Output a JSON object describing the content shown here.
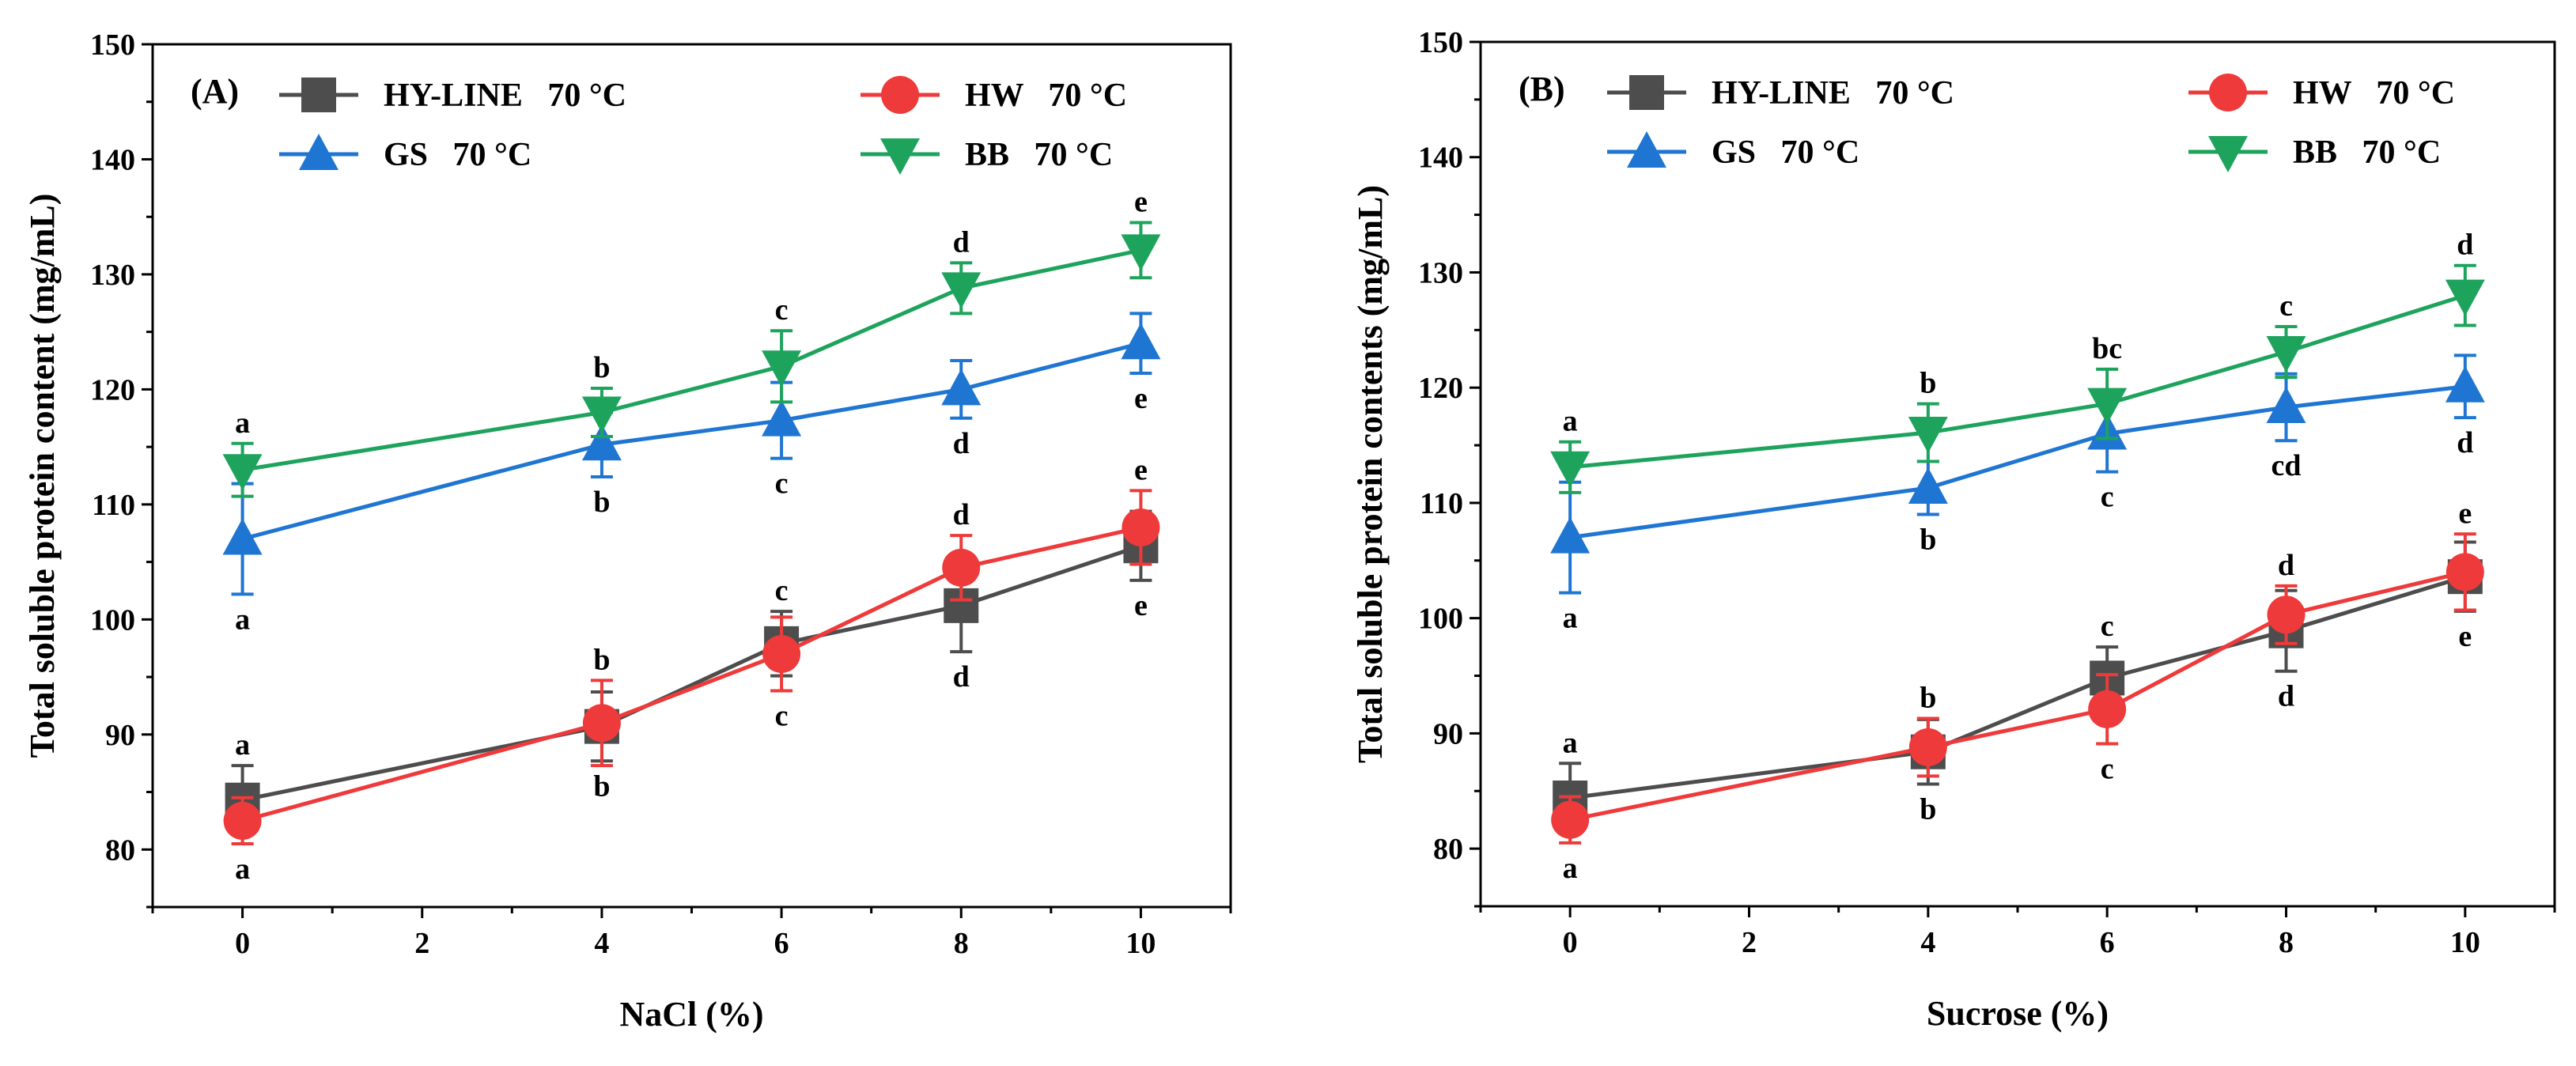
{
  "chart_data": [
    {
      "type": "line",
      "panel_label": "(A)",
      "xlabel": "NaCl (%)",
      "ylabel": "Total soluble protein content (mg/mL)",
      "xlim": [
        -1,
        11
      ],
      "ylim": [
        75,
        150
      ],
      "xticks": [
        0,
        2,
        4,
        6,
        8,
        10
      ],
      "yticks": [
        80,
        90,
        100,
        110,
        120,
        130,
        140,
        150
      ],
      "x": [
        0,
        4,
        6,
        8,
        10
      ],
      "series": [
        {
          "name": "HY-LINE   70 °C",
          "color": "#4d4d4d",
          "marker": "square",
          "values": [
            84.3,
            90.7,
            97.9,
            101.2,
            106.4
          ],
          "errors": [
            3.0,
            3.0,
            2.8,
            4.0,
            3.0
          ],
          "letters": [
            "a",
            "b",
            "c",
            "d",
            "e"
          ],
          "letter_pos": [
            "above",
            "below",
            "above",
            "below",
            "below"
          ]
        },
        {
          "name": "HW   70 °C",
          "color": "#ee3a3a",
          "marker": "circle",
          "values": [
            82.5,
            91.0,
            97.0,
            104.5,
            108.0
          ],
          "errors": [
            2.0,
            3.7,
            3.2,
            2.8,
            3.2
          ],
          "letters": [
            "a",
            "b",
            "c",
            "d",
            "e"
          ],
          "letter_pos": [
            "below",
            "above",
            "below",
            "above",
            "above"
          ]
        },
        {
          "name": "GS   70 °C",
          "color": "#1f76d2",
          "marker": "triangle-up",
          "values": [
            107.0,
            115.2,
            117.3,
            120.0,
            124.0
          ],
          "errors": [
            4.8,
            2.8,
            3.3,
            2.5,
            2.6
          ],
          "letters": [
            "a",
            "b",
            "c",
            "d",
            "e"
          ],
          "letter_pos": [
            "below",
            "below",
            "below",
            "below",
            "below"
          ]
        },
        {
          "name": "BB   70 °C",
          "color": "#1ea35c",
          "marker": "triangle-down",
          "values": [
            113.0,
            118.0,
            122.0,
            128.8,
            132.1
          ],
          "errors": [
            2.3,
            2.1,
            3.1,
            2.2,
            2.4
          ],
          "letters": [
            "a",
            "b",
            "c",
            "d",
            "e"
          ],
          "letter_pos": [
            "above",
            "above",
            "above",
            "above",
            "above"
          ]
        }
      ]
    },
    {
      "type": "line",
      "panel_label": "(B)",
      "xlabel": "Sucrose (%)",
      "ylabel": "Total soluble protein contents (mg/mL)",
      "xlim": [
        -1,
        11
      ],
      "ylim": [
        75,
        150
      ],
      "xticks": [
        0,
        2,
        4,
        6,
        8,
        10
      ],
      "yticks": [
        80,
        90,
        100,
        110,
        120,
        130,
        140,
        150
      ],
      "x": [
        0,
        4,
        6,
        8,
        10
      ],
      "series": [
        {
          "name": "HY-LINE   70 °C",
          "color": "#4d4d4d",
          "marker": "square",
          "values": [
            84.4,
            88.4,
            94.8,
            98.9,
            103.6
          ],
          "errors": [
            3.0,
            2.8,
            2.7,
            3.5,
            3.0
          ],
          "letters": [
            "a",
            "b",
            "c",
            "d",
            "e"
          ],
          "letter_pos": [
            "above",
            "below",
            "above",
            "below",
            "below"
          ]
        },
        {
          "name": "HW   70 °C",
          "color": "#ee3a3a",
          "marker": "circle",
          "values": [
            82.5,
            88.8,
            92.1,
            100.3,
            104.0
          ],
          "errors": [
            2.0,
            2.5,
            3.0,
            2.5,
            3.3
          ],
          "letters": [
            "a",
            "b",
            "c",
            "d",
            "e"
          ],
          "letter_pos": [
            "below",
            "above",
            "below",
            "above",
            "above"
          ]
        },
        {
          "name": "GS   70 °C",
          "color": "#1f76d2",
          "marker": "triangle-up",
          "values": [
            107.0,
            111.3,
            116.0,
            118.3,
            120.1
          ],
          "errors": [
            4.8,
            2.3,
            3.3,
            2.9,
            2.7
          ],
          "letters": [
            "a",
            "b",
            "c",
            "cd",
            "d"
          ],
          "letter_pos": [
            "below",
            "below",
            "below",
            "below",
            "below"
          ]
        },
        {
          "name": "BB   70 °C",
          "color": "#1ea35c",
          "marker": "triangle-down",
          "values": [
            113.1,
            116.1,
            118.6,
            123.1,
            128.0
          ],
          "errors": [
            2.2,
            2.5,
            3.0,
            2.2,
            2.6
          ],
          "letters": [
            "a",
            "b",
            "bc",
            "c",
            "d"
          ],
          "letter_pos": [
            "above",
            "above",
            "above",
            "above",
            "above"
          ]
        }
      ]
    }
  ]
}
